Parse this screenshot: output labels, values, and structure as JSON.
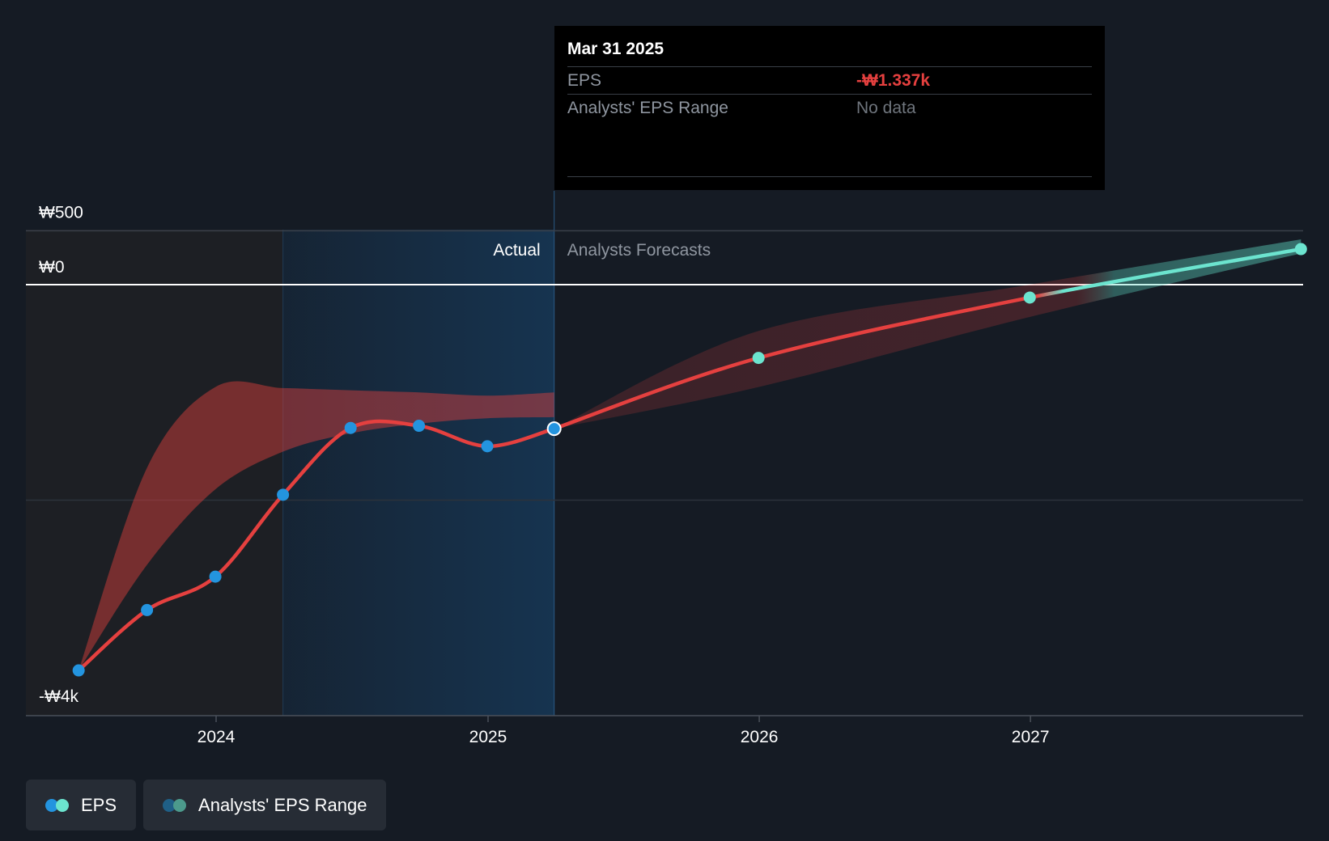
{
  "chart_data": {
    "type": "line",
    "y_axis_labels": [
      "₩500",
      "₩0",
      "-₩4k"
    ],
    "x_tick_labels": [
      "2024",
      "2025",
      "2026",
      "2027"
    ],
    "ylim": [
      -4000,
      500
    ],
    "region_labels": {
      "actual": "Actual",
      "forecast": "Analysts Forecasts"
    },
    "series": [
      {
        "name": "EPS",
        "kind": "actual",
        "x": [
          "2023-06-30",
          "2023-09-30",
          "2023-12-31",
          "2024-03-31",
          "2024-06-30",
          "2024-09-30",
          "2024-12-31",
          "2025-03-31"
        ],
        "values": [
          -3580,
          -3020,
          -2710,
          -1950,
          -1330,
          -1310,
          -1500,
          -1337
        ]
      },
      {
        "name": "EPS",
        "kind": "forecast",
        "x": [
          "2025-03-31",
          "2025-12-31",
          "2026-12-31",
          "2027-12-31"
        ],
        "values": [
          -1337,
          -680,
          -120,
          330
        ]
      }
    ],
    "range_band_actual": {
      "x": [
        "2023-06-30",
        "2023-09-30",
        "2023-12-31",
        "2024-03-31",
        "2024-06-30",
        "2024-09-30",
        "2024-12-31",
        "2025-03-31"
      ],
      "upper": [
        -3580,
        -1700,
        -950,
        -960,
        -980,
        -1000,
        -1030,
        -1000
      ],
      "lower": [
        -3580,
        -2600,
        -1900,
        -1550,
        -1380,
        -1290,
        -1240,
        -1230
      ]
    },
    "range_band_forecast": {
      "x": [
        "2025-03-31",
        "2025-12-31",
        "2026-12-31",
        "2027-12-31"
      ],
      "upper": [
        -1337,
        -430,
        0,
        420
      ],
      "lower": [
        -1337,
        -950,
        -300,
        290
      ]
    },
    "colors": {
      "eps_line": "#e5403f",
      "eps_actual_dot": "#2394df",
      "eps_forecast_dot": "#6ce4cf",
      "band_red": "#e5403f",
      "band_green": "#5fd9c4",
      "actual_shade": "#163552",
      "past_shade": "#1d1f24"
    },
    "grid": true,
    "legend_position": "bottom-left"
  },
  "tooltip": {
    "date": "Mar 31 2025",
    "eps_label": "EPS",
    "eps_value": "-₩1.337k",
    "range_label": "Analysts' EPS Range",
    "range_value": "No data"
  },
  "legend": {
    "eps_label": "EPS",
    "range_label": "Analysts' EPS Range"
  }
}
